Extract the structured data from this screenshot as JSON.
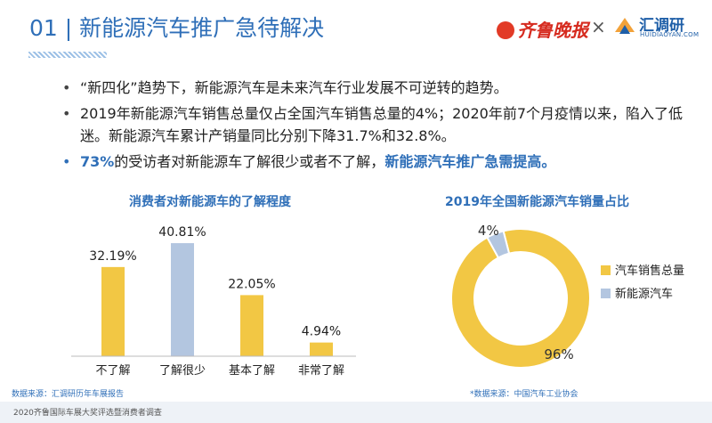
{
  "header": {
    "title": "01 | 新能源汽车推广急待解决",
    "partner_logo_text": "齐鲁晚报",
    "separator": "×",
    "brand_name": "汇调研",
    "brand_sub": "HUIDIAOYAN.COM"
  },
  "bullets": [
    {
      "text": "“新四化”趋势下，新能源汽车是未来汽车行业发展不可逆转的趋势。"
    },
    {
      "text": "2019年新能源汽车销售总量仅占全国汽车销售总量的4%；2020年前7个月疫情以来，陷入了低迷。新能源汽车累计产销量同比分别下降31.7%和32.8%。"
    },
    {
      "num": "73%",
      "text": "的受访者对新能源车了解很少或者不了解，",
      "emph": "新能源汽车推广急需提高。"
    }
  ],
  "chart_data": [
    {
      "type": "bar",
      "title": "消费者对新能源车的了解程度",
      "categories": [
        "不了解",
        "了解很少",
        "基本了解",
        "非常了解"
      ],
      "values": [
        32.19,
        40.81,
        22.05,
        4.94
      ],
      "value_labels": [
        "32.19%",
        "40.81%",
        "22.05%",
        "4.94%"
      ],
      "colors": [
        "#f2c744",
        "#b3c6e0",
        "#f2c744",
        "#f2c744"
      ],
      "ylim": [
        0,
        45
      ],
      "grid": false,
      "source": "数据来源：汇调研历年车展报告"
    },
    {
      "type": "pie",
      "style": "donut",
      "title": "2019年全国新能源汽车销量占比",
      "labels": [
        "汽车销售总量",
        "新能源汽车"
      ],
      "values": [
        96,
        4
      ],
      "value_labels": [
        "96%",
        "4%"
      ],
      "colors": [
        "#f2c744",
        "#b3c6e0"
      ],
      "legend": "right",
      "source": "*数据来源：中国汽车工业协会"
    }
  ],
  "footer": {
    "text": "2020齐鲁国际车展大奖评选暨消费者调查"
  }
}
